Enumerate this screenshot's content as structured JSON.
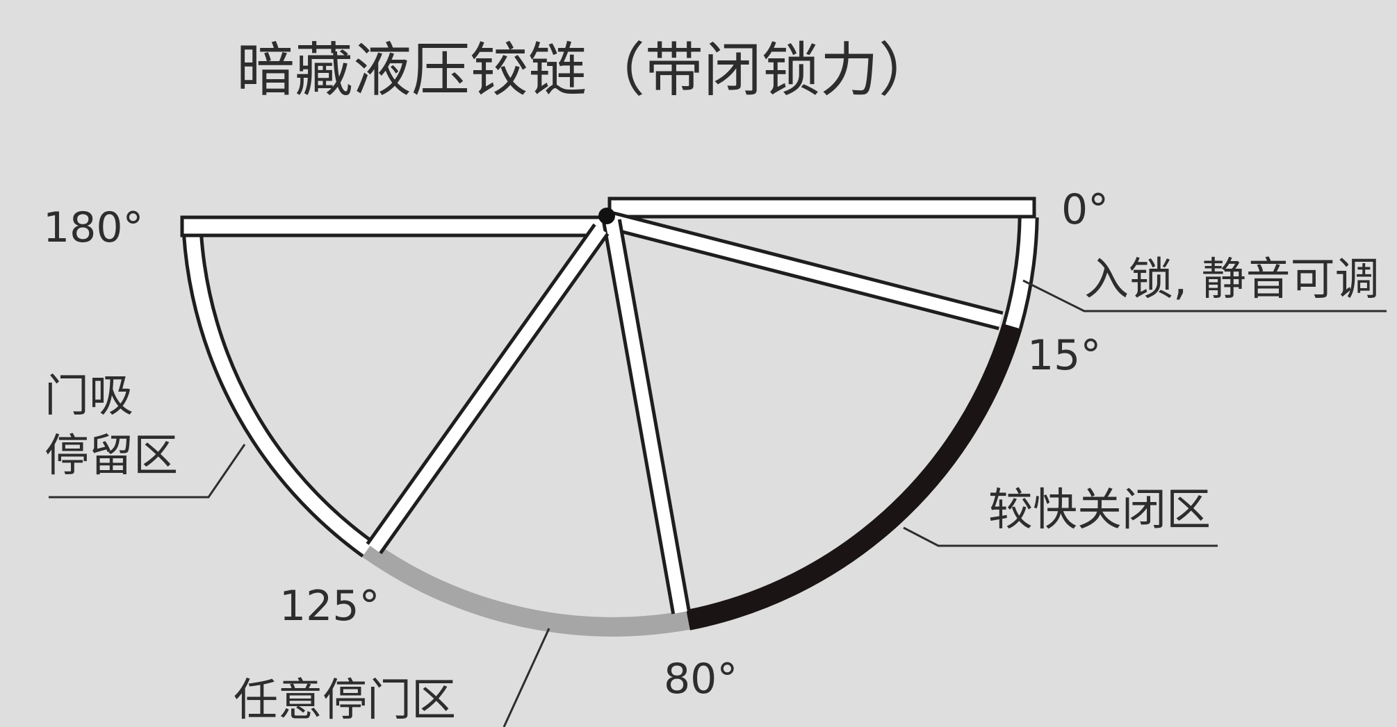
{
  "title": "暗藏液压铰链（带闭锁力）",
  "angles": [
    "0°",
    "15°",
    "80°",
    "125°",
    "180°"
  ],
  "zones": {
    "lock_silent": "入锁, 静音可调",
    "fast_close": "较快关闭区",
    "free_stop": "任意停门区",
    "stopper_line1": "门吸",
    "stopper_line2": "停留区"
  },
  "colors": {
    "background": "#dedede",
    "door_fill": "#ffffff",
    "outline": "#1e1e1e",
    "fast_close_arc": "#1b1414",
    "free_stop_arc": "#a6a6a6"
  }
}
